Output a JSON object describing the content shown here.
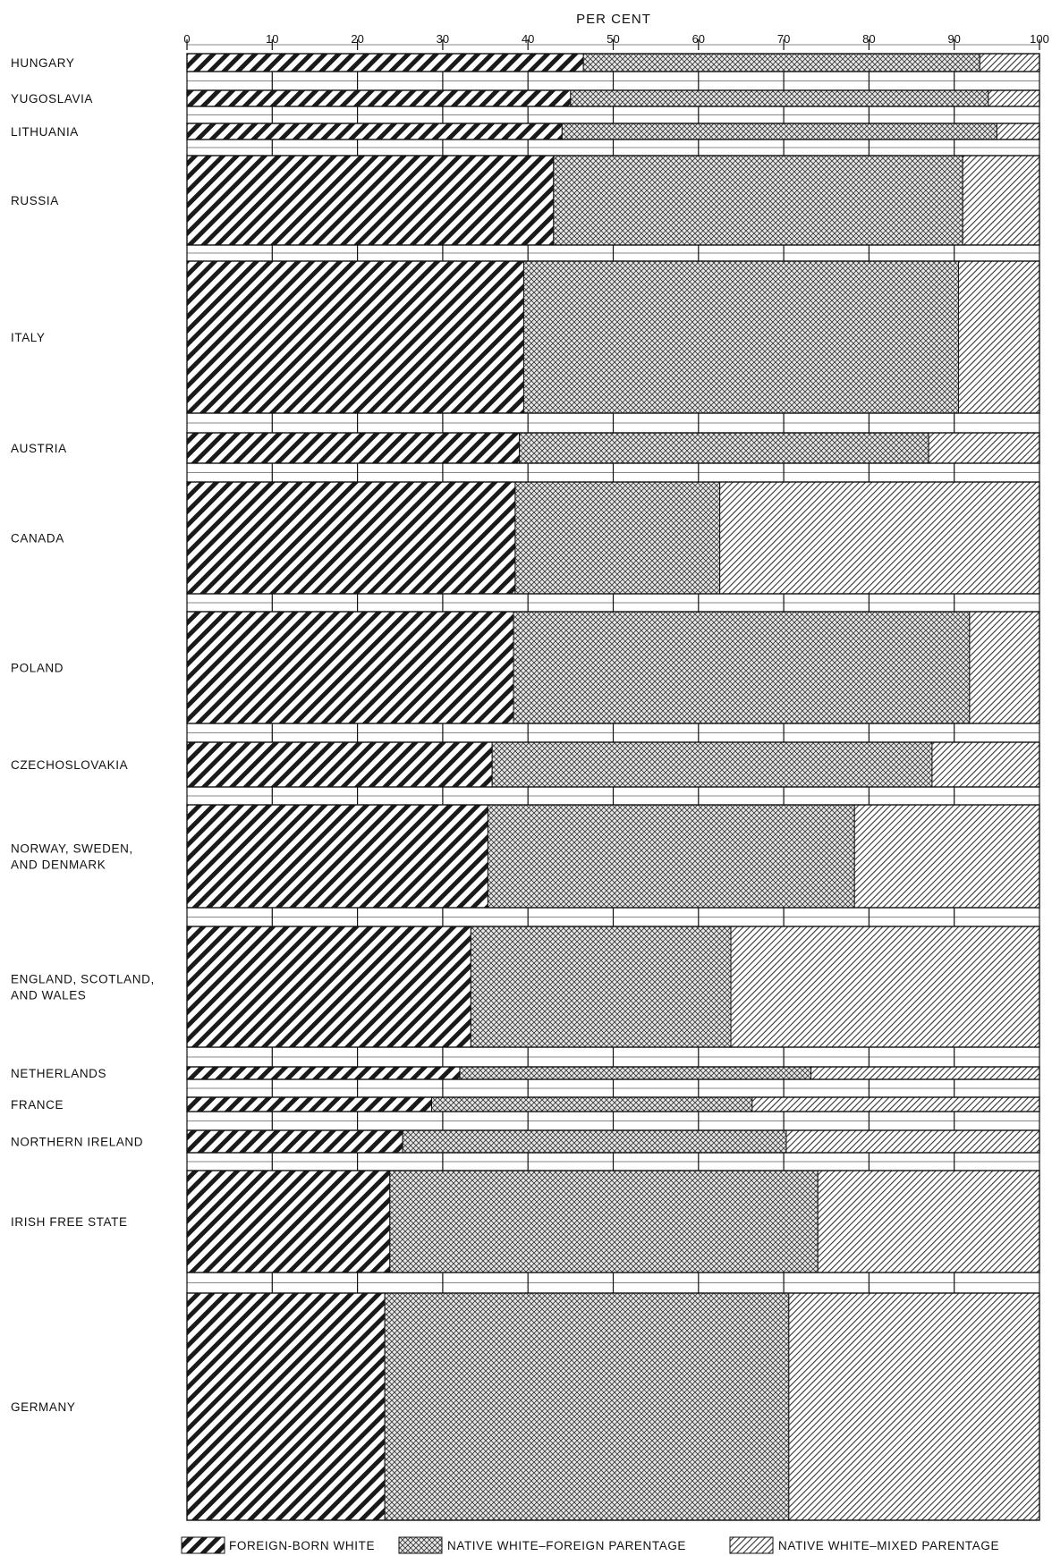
{
  "chart_data": {
    "type": "bar",
    "orientation": "horizontal",
    "stacked": true,
    "title": "",
    "xlabel": "PER CENT",
    "xlim": [
      0,
      100
    ],
    "xticks": [
      0,
      10,
      20,
      30,
      40,
      50,
      60,
      70,
      80,
      90,
      100
    ],
    "grid": false,
    "legend_position": "bottom",
    "categories": [
      [
        "HUNGARY"
      ],
      [
        "YUGOSLAVIA"
      ],
      [
        "LITHUANIA"
      ],
      [
        "RUSSIA"
      ],
      [
        "ITALY"
      ],
      [
        "AUSTRIA"
      ],
      [
        "CANADA"
      ],
      [
        "POLAND"
      ],
      [
        "CZECHOSLOVAKIA"
      ],
      [
        "NORWAY, SWEDEN,",
        "AND DENMARK"
      ],
      [
        "ENGLAND, SCOTLAND,",
        "AND WALES"
      ],
      [
        "NETHERLANDS"
      ],
      [
        "FRANCE"
      ],
      [
        "NORTHERN IRELAND"
      ],
      [
        "IRISH FREE STATE"
      ],
      [
        "GERMANY"
      ]
    ],
    "series": [
      {
        "name": "FOREIGN-BORN WHITE",
        "pattern": "heavy-diagonal",
        "values": [
          46.5,
          45,
          44,
          43,
          39.5,
          39,
          38.5,
          38.3,
          35.8,
          35.3,
          33.3,
          32,
          28.7,
          25.3,
          23.8,
          23.2
        ]
      },
      {
        "name": "NATIVE WHITE–FOREIGN PARENTAGE",
        "pattern": "crosshatch",
        "values": [
          46.5,
          49,
          51,
          48,
          51,
          48,
          24,
          53.5,
          51.6,
          43,
          30.5,
          41.2,
          37.6,
          45,
          50.2,
          47.4
        ]
      },
      {
        "name": "NATIVE WHITE–MIXED PARENTAGE",
        "pattern": "light-diagonal",
        "values": [
          7,
          6,
          5,
          9,
          9.5,
          13,
          37.5,
          8.2,
          12.6,
          21.7,
          36.2,
          26.8,
          33.7,
          29.7,
          26,
          29.4
        ]
      }
    ],
    "colors": {
      "ink": "#111111",
      "background": "#ffffff"
    }
  }
}
